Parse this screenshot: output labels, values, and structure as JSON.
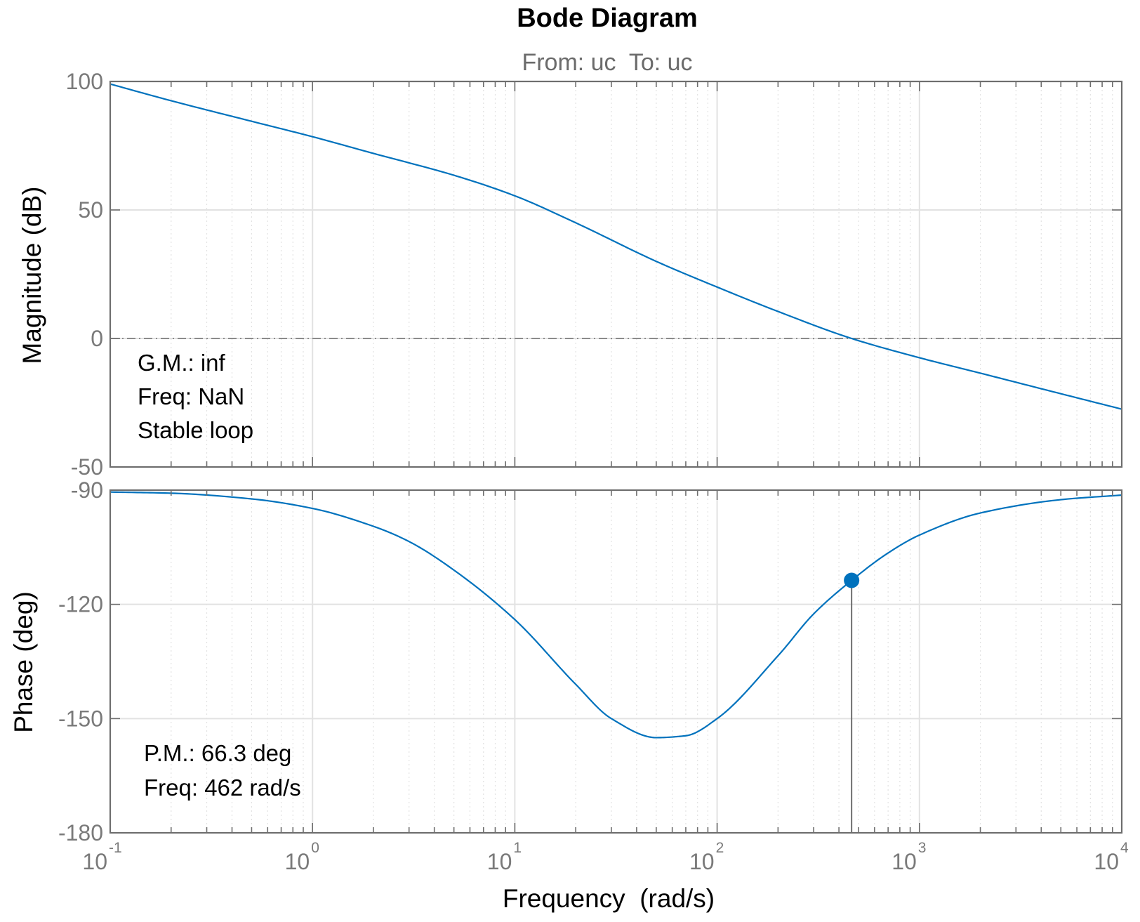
{
  "chart_data": {
    "type": "line",
    "title": "Bode Diagram",
    "subtitle": "From: uc  To: uc",
    "xlabel": "Frequency  (rad/s)",
    "xscale": "log",
    "xlim": [
      0.1,
      10000
    ],
    "x_ticks": [
      {
        "value": 0.1,
        "base": "10",
        "exp": "-1"
      },
      {
        "value": 1,
        "base": "10",
        "exp": "0"
      },
      {
        "value": 10,
        "base": "10",
        "exp": "1"
      },
      {
        "value": 100,
        "base": "10",
        "exp": "2"
      },
      {
        "value": 1000,
        "base": "10",
        "exp": "3"
      },
      {
        "value": 10000,
        "base": "10",
        "exp": "4"
      }
    ],
    "grid": true,
    "colors": {
      "curve": "#0072bd",
      "axis": "#6e6e6e",
      "grid": "#e2e2e2",
      "ref": "#6e6e6e"
    },
    "magnitude": {
      "ylabel": "Magnitude (dB)",
      "ylim": [
        -50,
        100
      ],
      "yticks": [
        100,
        50,
        0,
        -50
      ],
      "reference_line": 0,
      "series": {
        "name": "Magnitude",
        "x": [
          0.1,
          0.2,
          0.5,
          1,
          2,
          5,
          10,
          20,
          50,
          100,
          200,
          462,
          1000,
          2000,
          5000,
          10000
        ],
        "y": [
          99,
          92.5,
          84.5,
          78.5,
          72,
          63.5,
          55.5,
          45,
          30,
          20,
          10.5,
          0,
          -7.5,
          -13.5,
          -21.5,
          -27.5
        ]
      },
      "annotation": [
        "G.M.: inf",
        "Freq: NaN",
        "Stable loop"
      ]
    },
    "phase": {
      "ylabel": "Phase (deg)",
      "ylim": [
        -180,
        -90
      ],
      "yticks": [
        -90,
        -120,
        -150,
        -180
      ],
      "reference_line": -180,
      "series": {
        "name": "Phase",
        "x": [
          0.1,
          0.2,
          0.5,
          1,
          2,
          3,
          5,
          10,
          20,
          30,
          50,
          70,
          100,
          200,
          300,
          462,
          700,
          1000,
          2000,
          5000,
          10000
        ],
        "y": [
          -90.5,
          -90.8,
          -92.3,
          -94.8,
          -99.5,
          -103.5,
          -111,
          -124,
          -141,
          -150,
          -155,
          -154.5,
          -150,
          -133.5,
          -122.5,
          -113.7,
          -106.5,
          -101.8,
          -96,
          -92.5,
          -91.3
        ]
      },
      "marker": {
        "x": 462,
        "y": -113.7
      },
      "annotation": [
        "P.M.: 66.3 deg",
        "Freq: 462 rad/s"
      ]
    }
  }
}
